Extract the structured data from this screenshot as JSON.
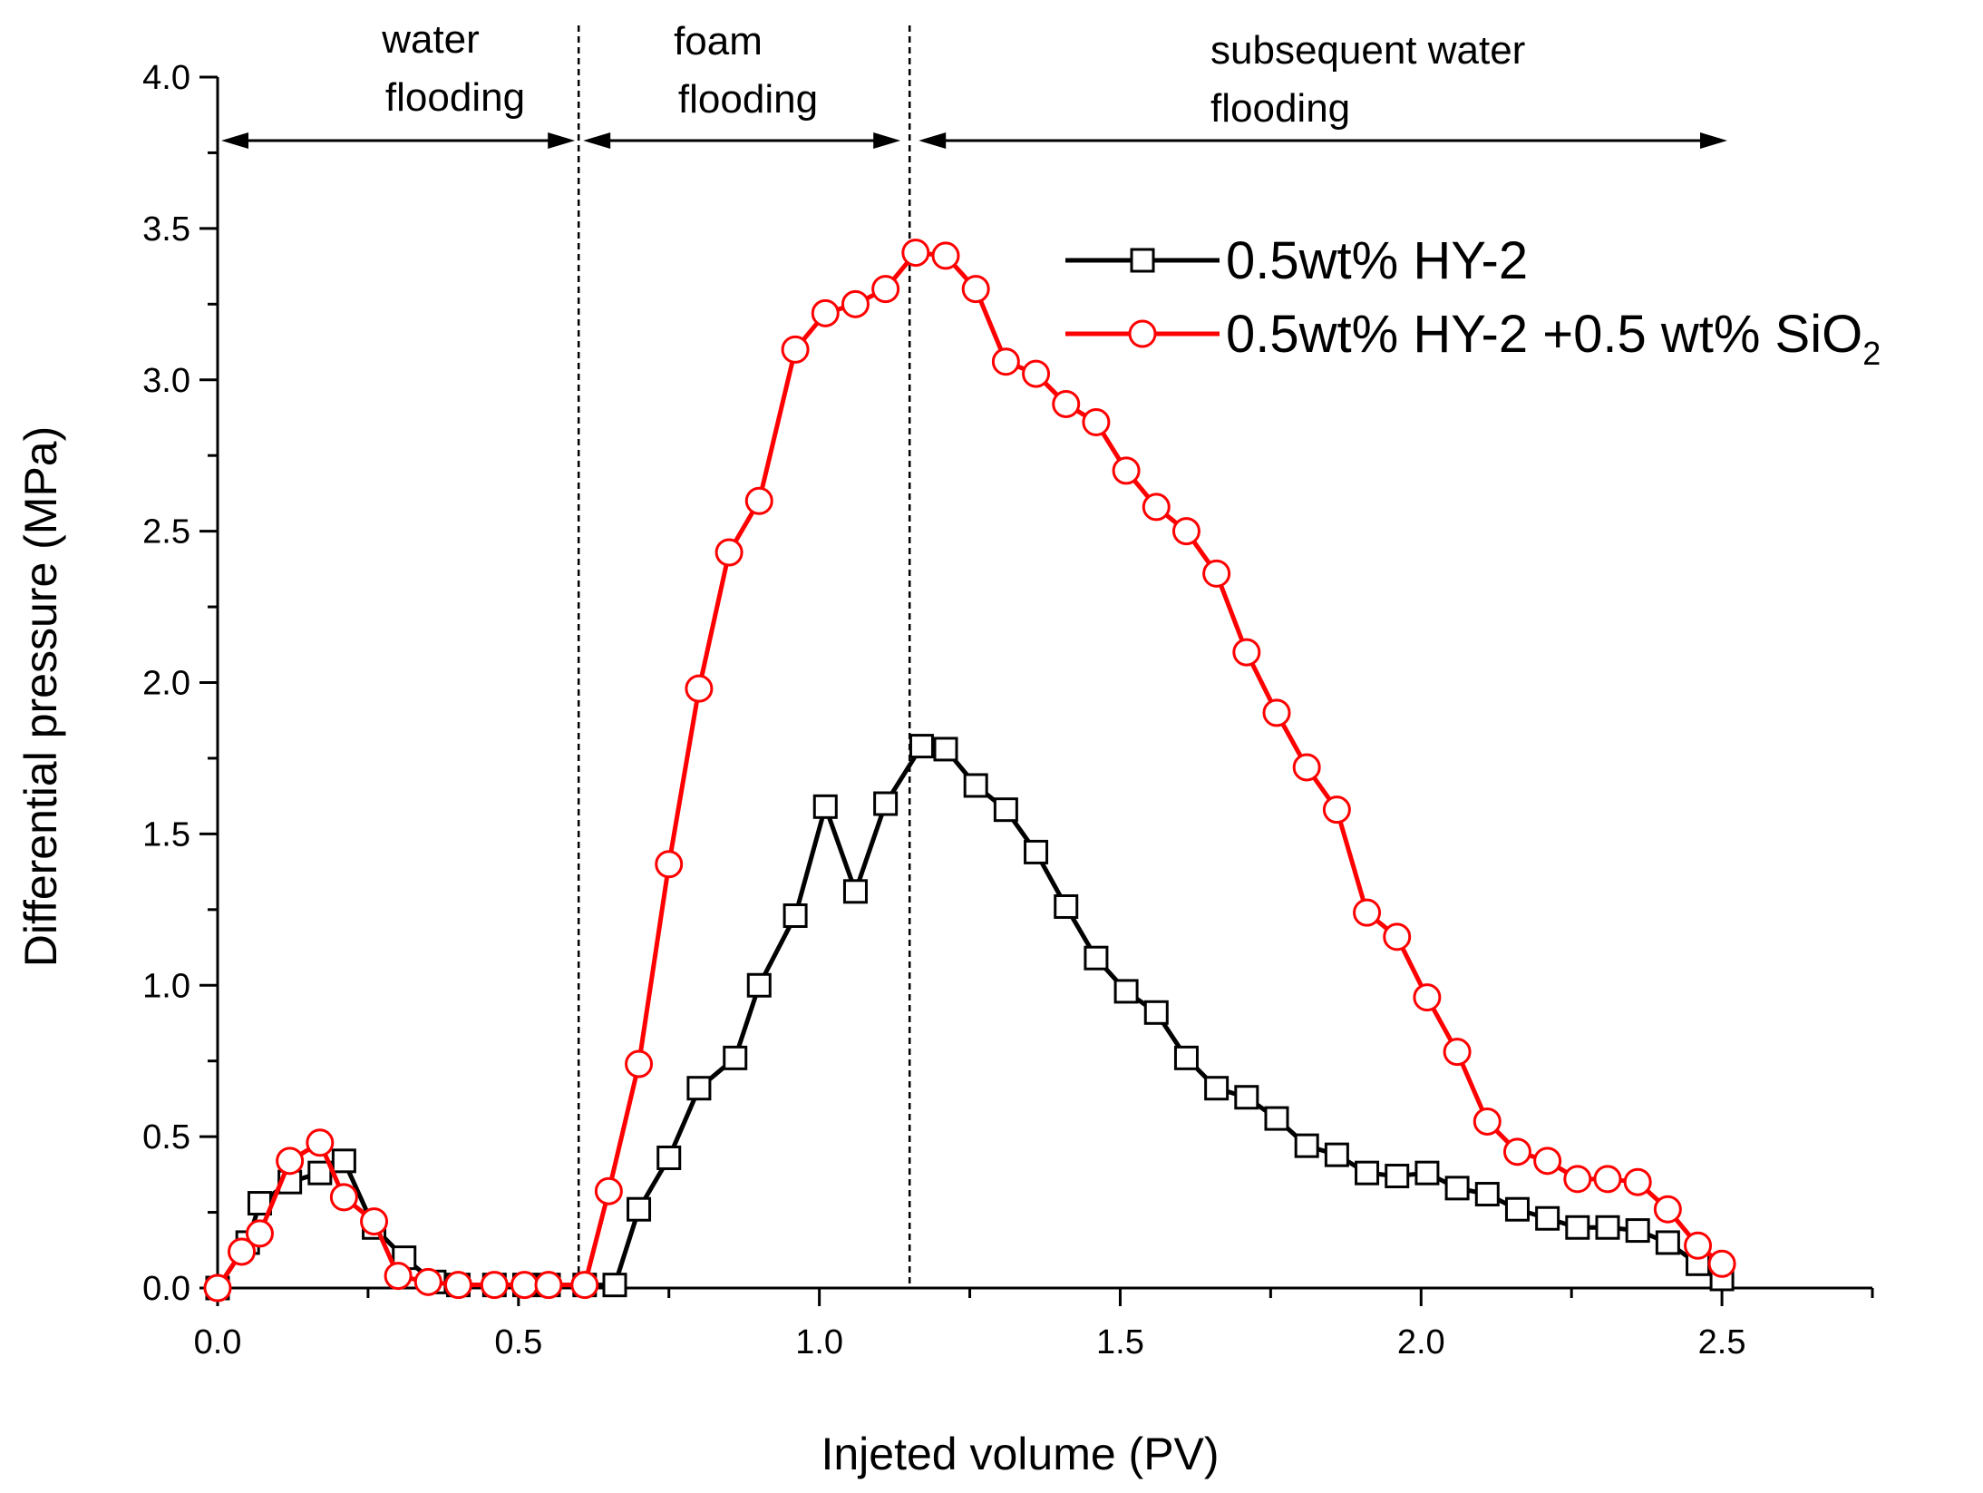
{
  "chart_data": {
    "type": "line",
    "title": "",
    "xlabel": "Injeted volume (PV)",
    "ylabel": "Differential pressure (MPa)",
    "xlim": [
      0.0,
      2.75
    ],
    "ylim": [
      0.0,
      4.0
    ],
    "xticks": [
      "0.0",
      "0.5",
      "1.0",
      "1.5",
      "2.0",
      "2.5"
    ],
    "xtick_values": [
      0.0,
      0.5,
      1.0,
      1.5,
      2.0,
      2.5
    ],
    "yticks": [
      "0.0",
      "0.5",
      "1.0",
      "1.5",
      "2.0",
      "2.5",
      "3.0",
      "3.5",
      "4.0"
    ],
    "ytick_values": [
      0.0,
      0.5,
      1.0,
      1.5,
      2.0,
      2.5,
      3.0,
      3.5,
      4.0
    ],
    "grid": false,
    "legend_position": "top-right",
    "phase_boundaries": [
      0.6,
      1.15
    ],
    "phases": [
      {
        "line1": "water",
        "line2": "flooding",
        "x_start": 0.0,
        "x_end": 0.6
      },
      {
        "line1": "foam",
        "line2": "flooding",
        "x_start": 0.6,
        "x_end": 1.15
      },
      {
        "line1": "subsequent water",
        "line2": "flooding",
        "x_start": 1.15,
        "x_end": 2.5
      }
    ],
    "series": [
      {
        "name": "0.5wt% HY-2",
        "name_suffix": "",
        "color": "#000000",
        "marker": "square",
        "x": [
          0.0,
          0.05,
          0.07,
          0.12,
          0.17,
          0.21,
          0.26,
          0.31,
          0.36,
          0.4,
          0.46,
          0.51,
          0.55,
          0.61,
          0.66,
          0.7,
          0.75,
          0.8,
          0.86,
          0.9,
          0.96,
          1.01,
          1.06,
          1.11,
          1.17,
          1.21,
          1.26,
          1.31,
          1.36,
          1.41,
          1.46,
          1.51,
          1.56,
          1.61,
          1.66,
          1.71,
          1.76,
          1.81,
          1.86,
          1.91,
          1.96,
          2.01,
          2.06,
          2.11,
          2.16,
          2.21,
          2.26,
          2.31,
          2.36,
          2.41,
          2.46,
          2.5
        ],
        "values": [
          0.0,
          0.15,
          0.28,
          0.35,
          0.38,
          0.42,
          0.2,
          0.1,
          0.02,
          0.01,
          0.01,
          0.01,
          0.01,
          0.01,
          0.01,
          0.26,
          0.43,
          0.66,
          0.76,
          1.0,
          1.23,
          1.59,
          1.31,
          1.6,
          1.79,
          1.78,
          1.66,
          1.58,
          1.44,
          1.26,
          1.09,
          0.98,
          0.91,
          0.76,
          0.66,
          0.63,
          0.56,
          0.47,
          0.44,
          0.38,
          0.37,
          0.38,
          0.33,
          0.31,
          0.26,
          0.23,
          0.2,
          0.2,
          0.19,
          0.15,
          0.08,
          0.03
        ]
      },
      {
        "name": "0.5wt% HY-2 +0.5 wt% SiO",
        "name_suffix": "2",
        "color": "#ff0000",
        "marker": "circle",
        "x": [
          0.0,
          0.04,
          0.07,
          0.12,
          0.17,
          0.21,
          0.26,
          0.3,
          0.35,
          0.4,
          0.46,
          0.51,
          0.55,
          0.61,
          0.65,
          0.7,
          0.75,
          0.8,
          0.85,
          0.9,
          0.96,
          1.01,
          1.06,
          1.11,
          1.16,
          1.21,
          1.26,
          1.31,
          1.36,
          1.41,
          1.46,
          1.51,
          1.56,
          1.61,
          1.66,
          1.71,
          1.76,
          1.81,
          1.86,
          1.91,
          1.96,
          2.01,
          2.06,
          2.11,
          2.16,
          2.21,
          2.26,
          2.31,
          2.36,
          2.41,
          2.46,
          2.5
        ],
        "values": [
          0.0,
          0.12,
          0.18,
          0.42,
          0.48,
          0.3,
          0.22,
          0.04,
          0.02,
          0.01,
          0.01,
          0.01,
          0.01,
          0.01,
          0.32,
          0.74,
          1.4,
          1.98,
          2.43,
          2.6,
          3.1,
          3.22,
          3.25,
          3.3,
          3.42,
          3.41,
          3.3,
          3.06,
          3.02,
          2.92,
          2.86,
          2.7,
          2.58,
          2.5,
          2.36,
          2.1,
          1.9,
          1.72,
          1.58,
          1.24,
          1.16,
          0.96,
          0.78,
          0.55,
          0.45,
          0.42,
          0.36,
          0.36,
          0.35,
          0.26,
          0.14,
          0.08
        ]
      }
    ]
  }
}
